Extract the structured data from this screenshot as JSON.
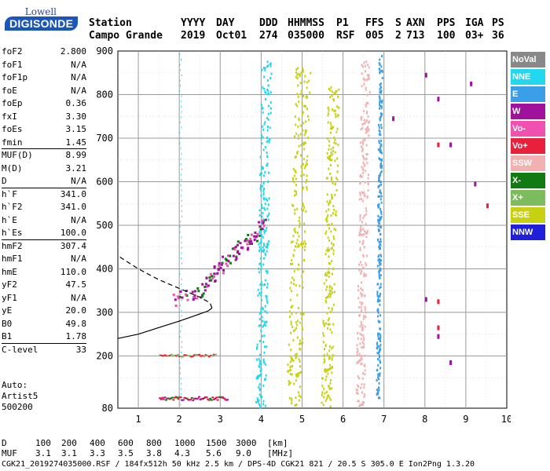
{
  "logo": {
    "line1": "Lowell",
    "line2": "DIGISONDE"
  },
  "header": {
    "labels": [
      "Station",
      "YYYY",
      "DAY",
      "DDD",
      "HHMMSS",
      "P1",
      "FFS",
      "S",
      "AXN",
      "PPS",
      "IGA",
      "PS"
    ],
    "values": [
      "Campo Grande",
      "2019",
      "Oct01",
      "274",
      "035000",
      "RSF",
      "005",
      "2",
      "713",
      "100",
      "03+",
      "36"
    ]
  },
  "params": [
    {
      "name": "foF2",
      "value": "2.800"
    },
    {
      "name": "foF1",
      "value": "N/A"
    },
    {
      "name": "foF1p",
      "value": "N/A"
    },
    {
      "name": "foE",
      "value": "N/A"
    },
    {
      "name": "foEp",
      "value": "0.36"
    },
    {
      "name": "fxI",
      "value": "3.30"
    },
    {
      "name": "foEs",
      "value": "3.15"
    },
    {
      "name": "fmin",
      "value": "1.45"
    },
    {
      "name": "MUF(D)",
      "value": "8.99"
    },
    {
      "name": "M(D)",
      "value": "3.21"
    },
    {
      "name": "D",
      "value": "N/A"
    },
    {
      "name": "h`F",
      "value": "341.0"
    },
    {
      "name": "h`F2",
      "value": "341.0"
    },
    {
      "name": "h`E",
      "value": "N/A"
    },
    {
      "name": "h`Es",
      "value": "100.0"
    },
    {
      "name": "hmF2",
      "value": "307.4"
    },
    {
      "name": "hmF1",
      "value": "N/A"
    },
    {
      "name": "hmE",
      "value": "110.0"
    },
    {
      "name": "yF2",
      "value": "47.5"
    },
    {
      "name": "yF1",
      "value": "N/A"
    },
    {
      "name": "yE",
      "value": "20.0"
    },
    {
      "name": "B0",
      "value": "49.8"
    },
    {
      "name": "B1",
      "value": "1.78"
    },
    {
      "name": "C-level",
      "value": "33"
    }
  ],
  "auto": {
    "line1": "Auto:",
    "line2": "Artist5",
    "line3": "500200"
  },
  "legend": [
    {
      "label": "NoVal",
      "color": "#888888"
    },
    {
      "label": "NNE",
      "color": "#22d8ee"
    },
    {
      "label": "E",
      "color": "#3a9ee8"
    },
    {
      "label": "W",
      "color": "#a0129c"
    },
    {
      "label": "Vo-",
      "color": "#f050b0"
    },
    {
      "label": "Vo+",
      "color": "#e8203c"
    },
    {
      "label": "SSW",
      "color": "#f2b0b0"
    },
    {
      "label": "X-",
      "color": "#127a12"
    },
    {
      "label": "X+",
      "color": "#7cbc5c"
    },
    {
      "label": "SSE",
      "color": "#c8d012"
    },
    {
      "label": "NNW",
      "color": "#2020d8"
    }
  ],
  "bottom": {
    "d_label": "D",
    "d_values": [
      "100",
      "200",
      "400",
      "600",
      "800",
      "1000",
      "1500",
      "3000"
    ],
    "d_unit": "[km]",
    "muf_label": "MUF",
    "muf_values": [
      "3.1",
      "3.1",
      "3.3",
      "3.5",
      "3.8",
      "4.3",
      "5.6",
      "9.0"
    ],
    "muf_unit": "[MHz]"
  },
  "footer": "CGK21_2019274035000.RSF / 184fx512h 50 kHz 2.5 km / DPS-4D CGK21 821 / 20.5 S 305.0 E Ion2Png 1.3.20",
  "chart_data": {
    "type": "scatter",
    "xlim": [
      0.5,
      10.0
    ],
    "ylim": [
      80,
      900
    ],
    "x_ticks": [
      1,
      2,
      3,
      4,
      5,
      6,
      7,
      8,
      9,
      10
    ],
    "y_ticks": [
      80,
      200,
      300,
      400,
      500,
      600,
      700,
      800,
      900
    ],
    "grid": true,
    "legend_position": "right",
    "es_trace": {
      "x": [
        1.5,
        3.15
      ],
      "y": 100
    },
    "es_trace2": {
      "x": [
        1.5,
        2.9
      ],
      "y": 200
    },
    "ftrace_points": [
      [
        1.9,
        330
      ],
      [
        2.1,
        340
      ],
      [
        2.3,
        345
      ],
      [
        2.5,
        350
      ],
      [
        2.6,
        360
      ],
      [
        2.7,
        372
      ],
      [
        2.8,
        385
      ],
      [
        2.9,
        395
      ],
      [
        3.0,
        405
      ],
      [
        3.1,
        418
      ],
      [
        3.2,
        428
      ],
      [
        3.3,
        438
      ],
      [
        3.4,
        445
      ],
      [
        3.5,
        452
      ],
      [
        3.6,
        460
      ],
      [
        3.7,
        470
      ],
      [
        3.8,
        480
      ],
      [
        3.9,
        492
      ],
      [
        4.0,
        505
      ]
    ],
    "profile_curve": [
      [
        0.5,
        240
      ],
      [
        1.0,
        250
      ],
      [
        1.5,
        265
      ],
      [
        2.0,
        280
      ],
      [
        2.4,
        293
      ],
      [
        2.7,
        303
      ],
      [
        2.8,
        310
      ],
      [
        2.75,
        322
      ],
      [
        2.5,
        335
      ],
      [
        2.0,
        355
      ],
      [
        1.5,
        375
      ],
      [
        1.0,
        400
      ],
      [
        0.5,
        430
      ]
    ],
    "bands": [
      {
        "x": [
          3.85,
          4.25
        ],
        "ymin": 85,
        "ymax": 900,
        "series": "NNE"
      },
      {
        "x": [
          4.6,
          5.2
        ],
        "ymin": 85,
        "ymax": 870,
        "series": "SSE"
      },
      {
        "x": [
          5.45,
          5.9
        ],
        "ymin": 85,
        "ymax": 820,
        "series": "SSE"
      },
      {
        "x": [
          6.3,
          6.65
        ],
        "ymin": 85,
        "ymax": 880,
        "series": "SSW"
      },
      {
        "x": [
          6.8,
          6.95
        ],
        "ymin": 100,
        "ymax": 900,
        "series": "E"
      }
    ],
    "isolated_points": [
      [
        8.0,
        335
      ],
      [
        8.0,
        850
      ],
      [
        8.3,
        270
      ],
      [
        8.3,
        330
      ],
      [
        8.3,
        690
      ],
      [
        8.3,
        795
      ],
      [
        8.6,
        690
      ],
      [
        8.6,
        190
      ],
      [
        9.1,
        830
      ],
      [
        9.2,
        600
      ],
      [
        9.5,
        550
      ],
      [
        8.3,
        250
      ],
      [
        7.2,
        750
      ]
    ]
  }
}
